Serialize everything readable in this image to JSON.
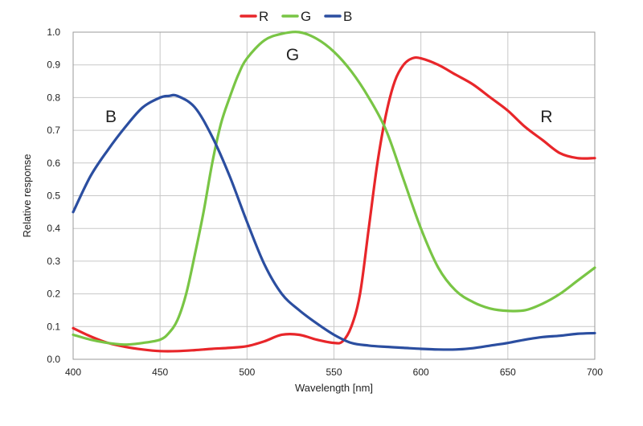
{
  "chart_data": {
    "type": "line",
    "title": "",
    "xlabel": "Wavelength [nm]",
    "ylabel": "Relative response",
    "xlim": [
      400,
      700
    ],
    "ylim": [
      0,
      1.0
    ],
    "grid": true,
    "legend_position": "top-center",
    "x_ticks": [
      "400",
      "450",
      "500",
      "550",
      "600",
      "650",
      "700"
    ],
    "y_ticks": [
      "0.0",
      "0.1",
      "0.2",
      "0.3",
      "0.4",
      "0.5",
      "0.6",
      "0.7",
      "0.8",
      "0.9",
      "1.0"
    ],
    "series": [
      {
        "name": "R",
        "color": "#e8262a",
        "annotation": "R",
        "x": [
          400,
          410,
          420,
          430,
          440,
          450,
          460,
          470,
          480,
          490,
          500,
          510,
          520,
          530,
          540,
          550,
          555,
          560,
          565,
          570,
          575,
          580,
          585,
          590,
          595,
          600,
          610,
          620,
          630,
          640,
          650,
          660,
          670,
          680,
          690,
          700
        ],
        "y": [
          0.095,
          0.07,
          0.05,
          0.038,
          0.03,
          0.025,
          0.025,
          0.028,
          0.032,
          0.035,
          0.04,
          0.055,
          0.075,
          0.075,
          0.06,
          0.05,
          0.055,
          0.1,
          0.2,
          0.4,
          0.6,
          0.75,
          0.85,
          0.9,
          0.92,
          0.92,
          0.9,
          0.87,
          0.84,
          0.8,
          0.76,
          0.71,
          0.67,
          0.63,
          0.615,
          0.615
        ]
      },
      {
        "name": "G",
        "color": "#79c545",
        "annotation": "G",
        "x": [
          400,
          410,
          420,
          430,
          440,
          450,
          455,
          460,
          465,
          470,
          475,
          480,
          485,
          490,
          495,
          500,
          510,
          520,
          530,
          540,
          550,
          560,
          570,
          580,
          590,
          600,
          610,
          620,
          630,
          640,
          650,
          660,
          670,
          680,
          690,
          700
        ],
        "y": [
          0.075,
          0.06,
          0.05,
          0.045,
          0.05,
          0.06,
          0.08,
          0.12,
          0.2,
          0.32,
          0.45,
          0.6,
          0.72,
          0.8,
          0.87,
          0.92,
          0.975,
          0.995,
          1.0,
          0.98,
          0.94,
          0.88,
          0.8,
          0.7,
          0.55,
          0.4,
          0.28,
          0.21,
          0.175,
          0.155,
          0.148,
          0.15,
          0.17,
          0.2,
          0.24,
          0.28
        ]
      },
      {
        "name": "B",
        "color": "#2b4ea0",
        "annotation": "B",
        "x": [
          400,
          410,
          420,
          430,
          440,
          450,
          455,
          460,
          470,
          480,
          490,
          500,
          510,
          520,
          530,
          540,
          550,
          560,
          570,
          580,
          590,
          600,
          610,
          620,
          630,
          640,
          650,
          660,
          670,
          680,
          690,
          700
        ],
        "y": [
          0.45,
          0.56,
          0.64,
          0.71,
          0.77,
          0.8,
          0.805,
          0.805,
          0.77,
          0.68,
          0.56,
          0.42,
          0.29,
          0.2,
          0.15,
          0.11,
          0.075,
          0.05,
          0.042,
          0.038,
          0.035,
          0.032,
          0.03,
          0.03,
          0.034,
          0.042,
          0.05,
          0.06,
          0.068,
          0.072,
          0.078,
          0.08
        ]
      }
    ]
  }
}
